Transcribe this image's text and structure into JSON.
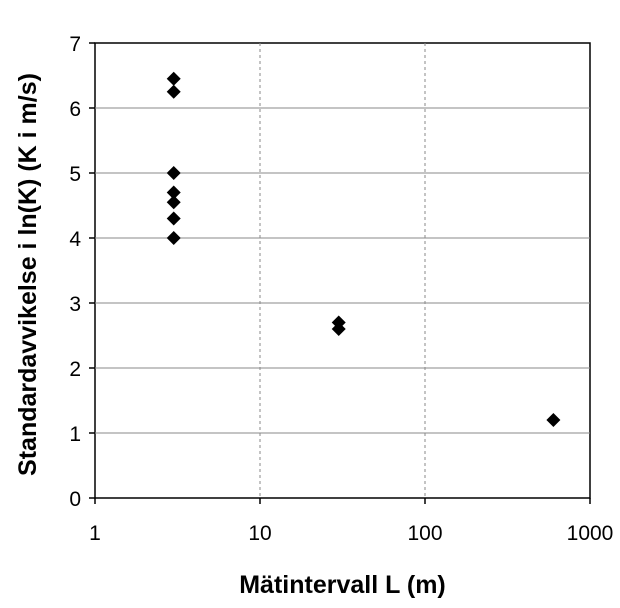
{
  "chart_data": {
    "type": "scatter",
    "title": "",
    "xlabel": "Mätintervall L (m)",
    "ylabel": "Standardavvikelse i ln(K) (K i m/s)",
    "x_scale": "log",
    "xlim": [
      1,
      1000
    ],
    "ylim": [
      0,
      7
    ],
    "x_ticks": [
      1,
      10,
      100,
      1000
    ],
    "x_tick_labels": [
      "1",
      "10",
      "100",
      "1000"
    ],
    "y_ticks": [
      0,
      1,
      2,
      3,
      4,
      5,
      6,
      7
    ],
    "y_tick_labels": [
      "0",
      "1",
      "2",
      "3",
      "4",
      "5",
      "6",
      "7"
    ],
    "grid": {
      "horizontal": true,
      "vertical": true
    },
    "legend": "none",
    "marker": "diamond",
    "marker_color": "#000000",
    "points": [
      {
        "x": 3,
        "y": 6.45
      },
      {
        "x": 3,
        "y": 6.25
      },
      {
        "x": 3,
        "y": 5.0
      },
      {
        "x": 3,
        "y": 4.7
      },
      {
        "x": 3,
        "y": 4.55
      },
      {
        "x": 3,
        "y": 4.3
      },
      {
        "x": 3,
        "y": 4.0
      },
      {
        "x": 30,
        "y": 2.7
      },
      {
        "x": 30,
        "y": 2.6
      },
      {
        "x": 600,
        "y": 1.2
      }
    ]
  }
}
